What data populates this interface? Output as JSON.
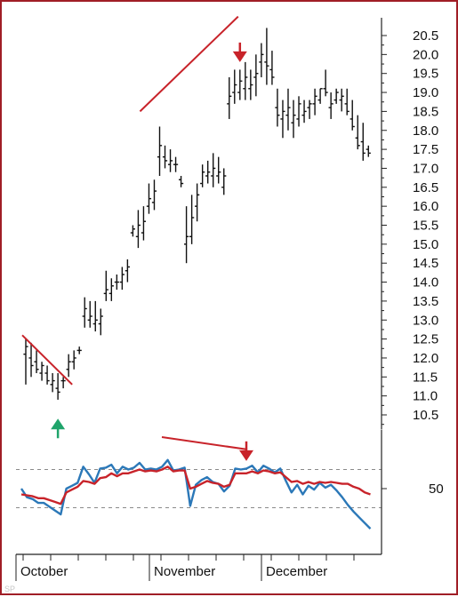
{
  "chart_data": [
    {
      "type": "bar",
      "subtype": "ohlc-price-bars",
      "title": "",
      "xlabel": "",
      "ylabel": "",
      "x_labels": [
        "October",
        "November",
        "December"
      ],
      "yticks": [
        10.5,
        11.0,
        11.5,
        12.0,
        12.5,
        13.0,
        13.5,
        14.0,
        14.5,
        15.0,
        15.5,
        16.0,
        16.5,
        17.0,
        17.5,
        18.0,
        18.5,
        19.0,
        19.5,
        20.0,
        20.5
      ],
      "ylim": [
        10.5,
        20.5
      ],
      "y_axis_side": "right",
      "series": [
        {
          "high": [
            12.5,
            12.4,
            12.2,
            11.9,
            11.8,
            11.6,
            11.6,
            11.5,
            12.1,
            12.2,
            12.3,
            13.6,
            13.5,
            13.5,
            13.3,
            14.3,
            14.1,
            14.2,
            14.4,
            14.6,
            15.5,
            15.9,
            16.0,
            16.6,
            16.7,
            18.1,
            17.6,
            17.5,
            17.3,
            16.8,
            16.0,
            16.3,
            16.6,
            17.1,
            17.2,
            17.4,
            17.3,
            17.0,
            19.4,
            19.6,
            19.6,
            19.8,
            19.6,
            20.0,
            20.3,
            20.7,
            20.1,
            19.1,
            18.8,
            19.1,
            18.8,
            18.9,
            18.8,
            18.8,
            19.1,
            19.1,
            19.6,
            19.0,
            19.1,
            19.1,
            19.1,
            18.8,
            18.4,
            18.2,
            17.6
          ],
          "low": [
            11.3,
            11.5,
            11.6,
            11.4,
            11.3,
            11.1,
            10.9,
            11.2,
            11.5,
            11.7,
            12.1,
            12.8,
            12.8,
            12.7,
            12.6,
            13.5,
            13.5,
            13.8,
            13.8,
            14.0,
            15.2,
            14.9,
            15.1,
            15.8,
            15.9,
            16.8,
            17.0,
            16.9,
            16.9,
            16.5,
            14.5,
            15.0,
            15.6,
            16.5,
            16.6,
            16.5,
            16.6,
            16.3,
            18.3,
            18.7,
            18.8,
            18.8,
            18.8,
            18.9,
            19.4,
            19.2,
            19.2,
            18.1,
            17.8,
            18.0,
            17.8,
            18.1,
            18.2,
            18.3,
            18.4,
            18.7,
            18.9,
            18.3,
            18.7,
            18.5,
            18.4,
            18.0,
            17.5,
            17.2,
            17.3
          ],
          "open": [
            12.1,
            12.0,
            11.9,
            11.6,
            11.6,
            11.3,
            11.2,
            11.4,
            11.7,
            11.9,
            12.2,
            13.1,
            13.0,
            12.9,
            12.9,
            13.7,
            13.7,
            14.0,
            14.0,
            14.3,
            15.3,
            15.2,
            15.3,
            16.0,
            16.1,
            17.3,
            17.3,
            17.1,
            17.1,
            16.7,
            15.0,
            15.2,
            16.0,
            16.6,
            16.8,
            16.8,
            16.8,
            16.5,
            18.7,
            19.0,
            19.0,
            19.1,
            19.1,
            19.4,
            19.8,
            19.8,
            19.6,
            18.6,
            18.3,
            18.4,
            18.2,
            18.3,
            18.4,
            18.6,
            18.7,
            18.8,
            19.1,
            18.6,
            18.8,
            18.8,
            18.7,
            18.3,
            17.8,
            17.7,
            17.5
          ],
          "close": [
            12.3,
            11.8,
            11.7,
            11.8,
            11.4,
            11.4,
            11.1,
            11.4,
            11.9,
            12.0,
            12.2,
            13.3,
            13.1,
            13.0,
            13.1,
            13.8,
            13.9,
            14.0,
            14.2,
            14.4,
            15.4,
            15.5,
            15.6,
            16.2,
            16.4,
            17.6,
            17.2,
            17.2,
            17.1,
            16.6,
            15.2,
            15.7,
            16.3,
            16.9,
            16.9,
            17.0,
            16.9,
            16.8,
            18.9,
            19.2,
            19.3,
            19.4,
            19.2,
            19.5,
            20.0,
            19.7,
            19.4,
            18.4,
            18.5,
            18.6,
            18.4,
            18.7,
            18.5,
            18.7,
            18.9,
            19.1,
            19.0,
            18.7,
            19.0,
            18.9,
            18.5,
            18.1,
            17.6,
            17.4,
            17.4
          ]
        }
      ],
      "trendlines": [
        {
          "color": "#c8232a",
          "description": "falling",
          "x": [
            0,
            8
          ],
          "y": [
            12.6,
            11.3
          ]
        },
        {
          "color": "#c8232a",
          "description": "rising",
          "x": [
            22,
            39
          ],
          "y": [
            18.5,
            21.0
          ]
        }
      ],
      "arrows": [
        {
          "color": "#1fa46b",
          "direction": "up",
          "x": 6,
          "y": 10.4
        },
        {
          "color": "#c8232a",
          "direction": "down",
          "x": 40,
          "y": 19.8
        }
      ]
    },
    {
      "type": "line",
      "subtype": "oscillator",
      "title": "",
      "xlabel": "",
      "ylabel": "",
      "yticks": [
        50
      ],
      "ylim": [
        5,
        100
      ],
      "reference_lines": [
        70,
        30
      ],
      "series": [
        {
          "color": "#2b78b8",
          "values": [
            50,
            41,
            39,
            35,
            35,
            31,
            27,
            23,
            50,
            53,
            56,
            73,
            65,
            56,
            71,
            72,
            75,
            66,
            73,
            70,
            72,
            77,
            70,
            71,
            70,
            73,
            80,
            69,
            70,
            72,
            32,
            54,
            59,
            62,
            57,
            55,
            47,
            53,
            71,
            70,
            71,
            74,
            67,
            74,
            71,
            67,
            71,
            58,
            46,
            54,
            44,
            53,
            49,
            56,
            51,
            54,
            48,
            41,
            33,
            26,
            20,
            14,
            8
          ]
        },
        {
          "color": "#c8232a",
          "values": [
            44,
            43,
            42,
            40,
            40,
            38,
            36,
            34,
            46,
            49,
            52,
            58,
            57,
            55,
            61,
            62,
            66,
            63,
            66,
            66,
            68,
            70,
            68,
            69,
            68,
            70,
            73,
            68,
            69,
            69,
            50,
            52,
            55,
            58,
            56,
            55,
            52,
            54,
            66,
            66,
            66,
            68,
            66,
            69,
            68,
            66,
            67,
            62,
            57,
            58,
            55,
            57,
            55,
            57,
            56,
            57,
            56,
            55,
            55,
            52,
            50,
            46,
            44
          ]
        }
      ],
      "trendlines": [
        {
          "color": "#c8232a",
          "description": "falling",
          "x": [
            22,
            41
          ],
          "y": [
            104,
            91
          ]
        }
      ],
      "arrows": [
        {
          "color": "#c8232a",
          "direction": "down",
          "x": 41,
          "y": 79
        }
      ]
    }
  ],
  "watermark": "​SP​"
}
